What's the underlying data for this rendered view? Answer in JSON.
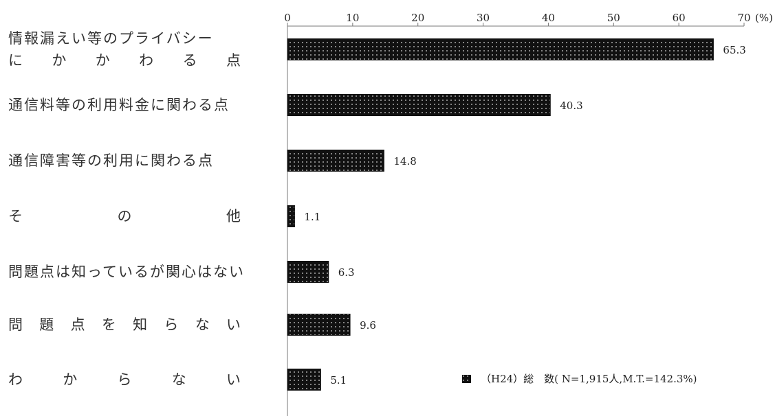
{
  "chart_data": {
    "type": "bar",
    "orientation": "horizontal",
    "categories": [
      [
        "情報漏えい等のプライバシー",
        "に か か わ る 点"
      ],
      [
        "通信料等の利用料金に関わる点"
      ],
      [
        "通信障害等の利用に関わる点"
      ],
      [
        "そ の 他"
      ],
      [
        "問題点は知っているが関心はない"
      ],
      [
        "問 題 点 を 知 ら な い"
      ],
      [
        "わ か ら な い"
      ]
    ],
    "series": [
      {
        "name": "（H24）総　数( N=1,915人,M.T.=142.3%)",
        "values": [
          65.3,
          40.3,
          14.8,
          1.1,
          6.3,
          9.6,
          5.1
        ],
        "value_labels": [
          "65.3",
          "40.3",
          "14.8",
          "1.1",
          "6.3",
          "9.6",
          "5.1"
        ]
      }
    ],
    "x_ticks": [
      "0",
      "10",
      "20",
      "30",
      "40",
      "50",
      "60",
      "70"
    ],
    "x_unit": "(%)",
    "xlim": [
      0,
      70
    ],
    "grid": false,
    "legend_position": "bottom-right",
    "bar_color": "#111111",
    "bar_pattern": "dotted"
  }
}
